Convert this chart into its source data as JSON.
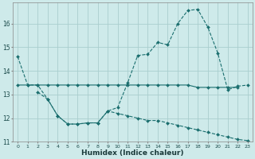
{
  "xlabel": "Humidex (Indice chaleur)",
  "background_color": "#ceeaea",
  "grid_color": "#aacece",
  "line_color": "#1a6e6e",
  "x_values": [
    0,
    1,
    2,
    3,
    4,
    5,
    6,
    7,
    8,
    9,
    10,
    11,
    12,
    13,
    14,
    15,
    16,
    17,
    18,
    19,
    20,
    21,
    22,
    23
  ],
  "series1": [
    14.6,
    13.4,
    13.4,
    12.8,
    12.1,
    11.75,
    11.75,
    11.8,
    11.8,
    12.3,
    12.45,
    13.5,
    14.65,
    14.7,
    15.2,
    15.1,
    16.0,
    16.55,
    16.6,
    15.85,
    14.75,
    13.2,
    13.35,
    13.4
  ],
  "line1": [
    13.4,
    13.4,
    13.4,
    13.4,
    13.4,
    13.4,
    13.4,
    13.4,
    13.4,
    13.4,
    13.4,
    13.4,
    13.4,
    13.4,
    13.4,
    13.4,
    13.4,
    13.4,
    13.3,
    13.3,
    13.3,
    13.3,
    13.3,
    null
  ],
  "line2": [
    null,
    null,
    13.1,
    12.8,
    12.1,
    11.75,
    11.75,
    11.8,
    11.8,
    12.3,
    12.2,
    12.1,
    12.0,
    11.9,
    11.9,
    11.8,
    11.7,
    11.6,
    11.5,
    11.4,
    11.3,
    11.2,
    11.1,
    11.05
  ],
  "ylim": [
    11.0,
    16.9
  ],
  "yticks": [
    11,
    12,
    13,
    14,
    15,
    16
  ],
  "xticks": [
    0,
    1,
    2,
    3,
    4,
    5,
    6,
    7,
    8,
    9,
    10,
    11,
    12,
    13,
    14,
    15,
    16,
    17,
    18,
    19,
    20,
    21,
    22,
    23
  ]
}
